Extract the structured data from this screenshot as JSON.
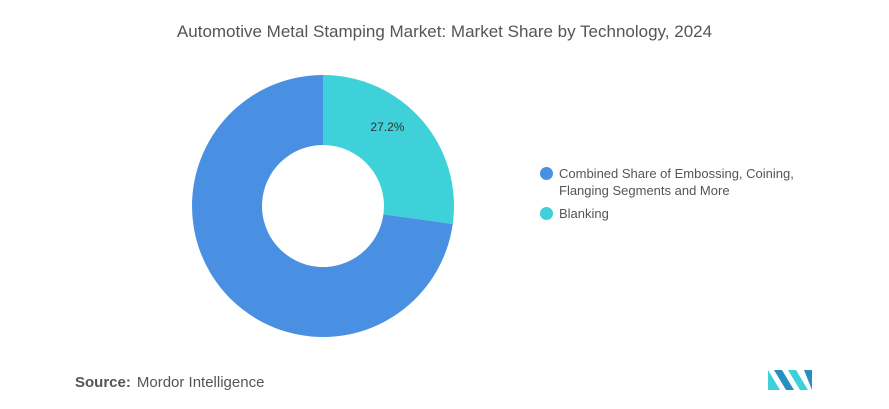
{
  "title": "Automotive Metal Stamping Market: Market Share by Technology, 2024",
  "source": {
    "label": "Source:",
    "value": "Mordor Intelligence"
  },
  "colors": {
    "primary": "#4a90e2",
    "secondary": "#3fd1d9",
    "logo": "#3fd1d9"
  },
  "chart_data": {
    "type": "pie",
    "variant": "donut",
    "slices": [
      {
        "label": "Blanking",
        "value": 27.2,
        "color": "#3fd1d9",
        "data_label": "27.2%"
      },
      {
        "label": "Combined Share of Embossing, Coining, Flanging Segments and More",
        "value": 72.8,
        "color": "#4a90e2",
        "data_label": ""
      }
    ],
    "legend": {
      "placement": "right",
      "items": [
        {
          "label": "Combined Share of Embossing, Coining, Flanging Segments and More",
          "color": "#4a90e2"
        },
        {
          "label": "Blanking",
          "color": "#3fd1d9"
        }
      ]
    }
  }
}
